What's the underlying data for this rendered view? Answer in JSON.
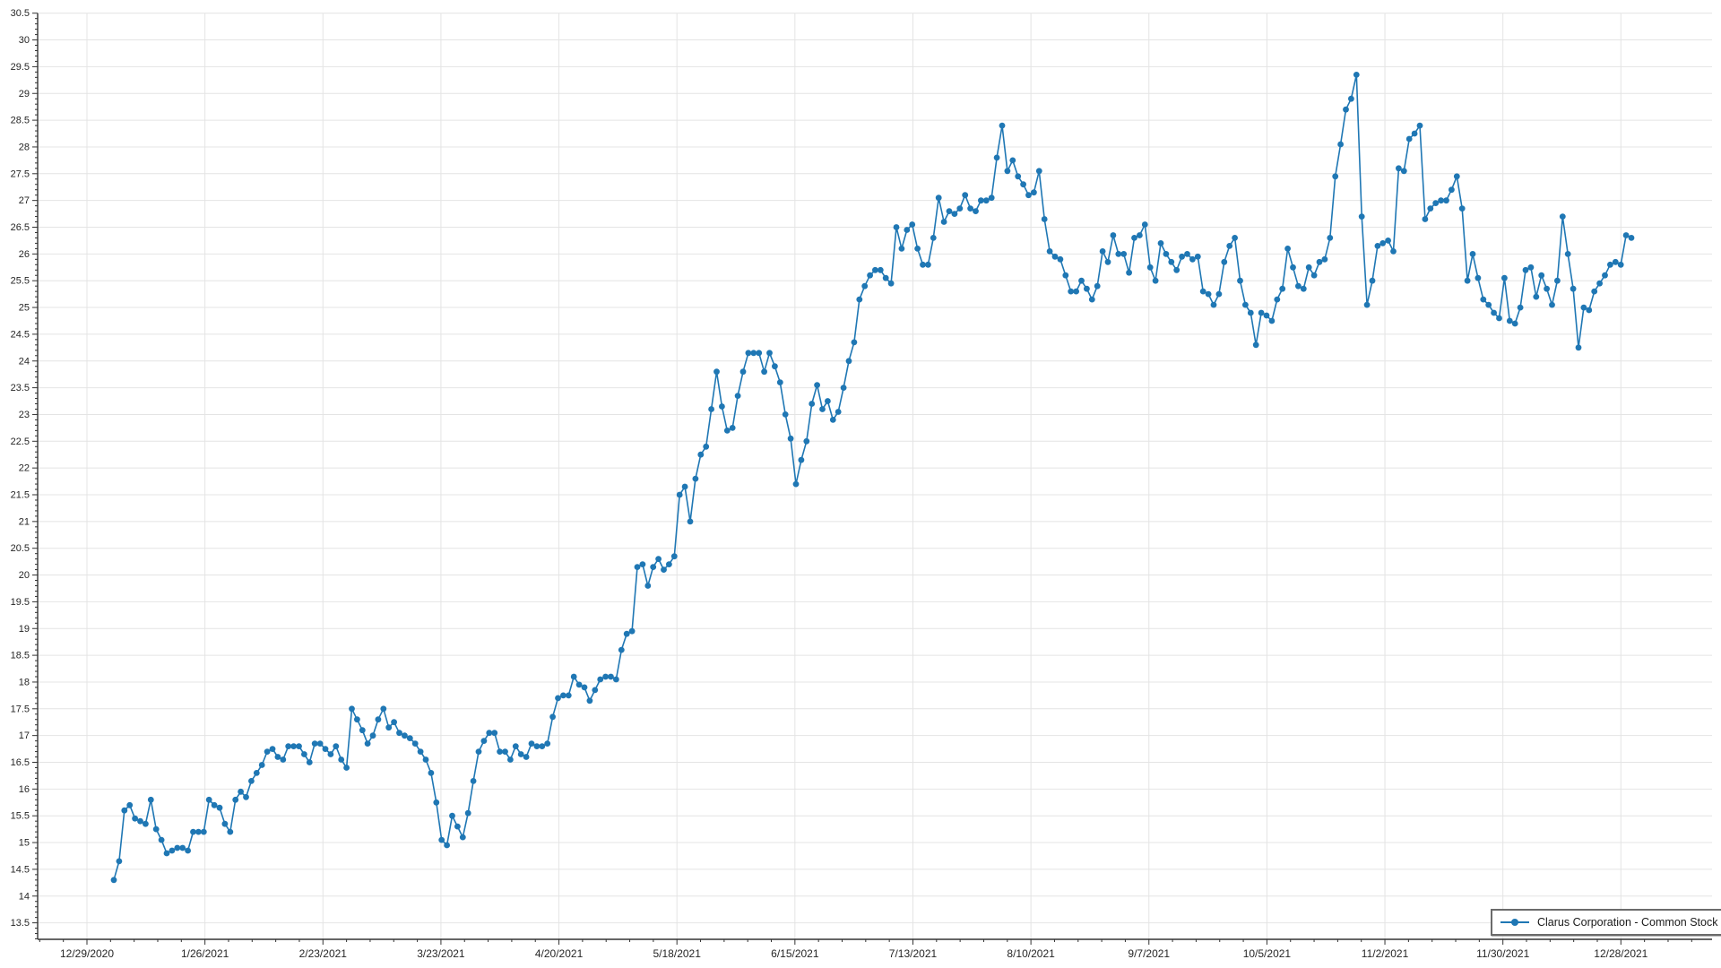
{
  "legend": {
    "label": "Clarus Corporation - Common Stock"
  },
  "chart_data": {
    "type": "line",
    "title": "",
    "xlabel": "",
    "ylabel": "",
    "grid": true,
    "legend_position": "bottom-right",
    "colors": {
      "line": "#1f77b4",
      "grid": "#e4e4e4",
      "axis": "#333333",
      "text": "#262626",
      "legend_border": "#6b6b6b"
    },
    "x_tick_labels": [
      "12/29/2020",
      "1/26/2021",
      "2/23/2021",
      "3/23/2021",
      "4/20/2021",
      "5/18/2021",
      "6/15/2021",
      "7/13/2021",
      "8/10/2021",
      "9/7/2021",
      "10/5/2021",
      "11/2/2021",
      "11/30/2021",
      "12/28/2021"
    ],
    "y_axis": {
      "min": 13.5,
      "max": 30.5,
      "step": 0.5,
      "tick_labels": [
        "30.5",
        "30",
        "29.5",
        "29",
        "28.5",
        "28",
        "27.5",
        "27",
        "26.5",
        "26",
        "25.5",
        "25",
        "24.5",
        "24",
        "23.5",
        "23",
        "22.5",
        "22",
        "21.5",
        "21",
        "20.5",
        "20",
        "19.5",
        "19",
        "18.5",
        "18",
        "17.5",
        "17",
        "16.5",
        "16",
        "15.5",
        "15",
        "14.5",
        "14",
        "13.5"
      ]
    },
    "series": [
      {
        "name": "Clarus Corporation - Common Stock",
        "color": "#1f77b4",
        "marker": "circle",
        "values": [
          14.3,
          14.65,
          15.6,
          15.7,
          15.45,
          15.4,
          15.35,
          15.8,
          15.25,
          15.05,
          14.8,
          14.85,
          14.9,
          14.9,
          14.85,
          15.2,
          15.2,
          15.2,
          15.8,
          15.7,
          15.65,
          15.35,
          15.2,
          15.8,
          15.95,
          15.85,
          16.15,
          16.3,
          16.45,
          16.7,
          16.75,
          16.6,
          16.55,
          16.8,
          16.8,
          16.8,
          16.65,
          16.5,
          16.85,
          16.85,
          16.75,
          16.65,
          16.8,
          16.55,
          16.4,
          17.5,
          17.3,
          17.1,
          16.85,
          17.0,
          17.3,
          17.5,
          17.15,
          17.25,
          17.05,
          17.0,
          16.95,
          16.85,
          16.7,
          16.55,
          16.3,
          15.75,
          15.05,
          14.95,
          15.5,
          15.3,
          15.1,
          15.55,
          16.15,
          16.7,
          16.9,
          17.05,
          17.05,
          16.7,
          16.7,
          16.55,
          16.8,
          16.65,
          16.6,
          16.85,
          16.8,
          16.8,
          16.85,
          17.35,
          17.7,
          17.75,
          17.75,
          18.1,
          17.95,
          17.9,
          17.65,
          17.85,
          18.05,
          18.1,
          18.1,
          18.05,
          18.6,
          18.9,
          18.95,
          20.15,
          20.2,
          19.8,
          20.15,
          20.3,
          20.1,
          20.2,
          20.35,
          21.5,
          21.65,
          21.0,
          21.8,
          22.25,
          22.4,
          23.1,
          23.8,
          23.15,
          22.7,
          22.75,
          23.35,
          23.8,
          24.15,
          24.15,
          24.15,
          23.8,
          24.15,
          23.9,
          23.6,
          23.0,
          22.55,
          21.7,
          22.15,
          22.5,
          23.2,
          23.55,
          23.1,
          23.25,
          22.9,
          23.05,
          23.5,
          24.0,
          24.35,
          25.15,
          25.4,
          25.6,
          25.7,
          25.7,
          25.55,
          25.45,
          26.5,
          26.1,
          26.45,
          26.55,
          26.1,
          25.8,
          25.8,
          26.3,
          27.05,
          26.6,
          26.8,
          26.75,
          26.85,
          27.1,
          26.85,
          26.8,
          27.0,
          27.0,
          27.05,
          27.8,
          28.4,
          27.55,
          27.75,
          27.45,
          27.3,
          27.1,
          27.15,
          27.55,
          26.65,
          26.05,
          25.95,
          25.9,
          25.6,
          25.3,
          25.3,
          25.5,
          25.35,
          25.15,
          25.4,
          26.05,
          25.85,
          26.35,
          26.0,
          26.0,
          25.65,
          26.3,
          26.35,
          26.55,
          25.75,
          25.5,
          26.2,
          26.0,
          25.85,
          25.7,
          25.95,
          26.0,
          25.9,
          25.95,
          25.3,
          25.25,
          25.05,
          25.25,
          25.85,
          26.15,
          26.3,
          25.5,
          25.05,
          24.9,
          24.3,
          24.9,
          24.85,
          24.75,
          25.15,
          25.35,
          26.1,
          25.75,
          25.4,
          25.35,
          25.75,
          25.6,
          25.85,
          25.9,
          26.3,
          27.45,
          28.05,
          28.7,
          28.9,
          29.35,
          26.7,
          25.05,
          25.5,
          26.15,
          26.2,
          26.25,
          26.05,
          27.6,
          27.55,
          28.15,
          28.25,
          28.4,
          26.65,
          26.85,
          26.95,
          27.0,
          27.0,
          27.2,
          27.45,
          26.85,
          25.5,
          26.0,
          25.55,
          25.15,
          25.05,
          24.9,
          24.8,
          25.55,
          24.75,
          24.7,
          25.0,
          25.7,
          25.75,
          25.2,
          25.6,
          25.35,
          25.05,
          25.5,
          26.7,
          26.0,
          25.35,
          24.25,
          25.0,
          24.95,
          25.3,
          25.45,
          25.6,
          25.8,
          25.85,
          25.8,
          26.35,
          26.3
        ]
      }
    ]
  }
}
